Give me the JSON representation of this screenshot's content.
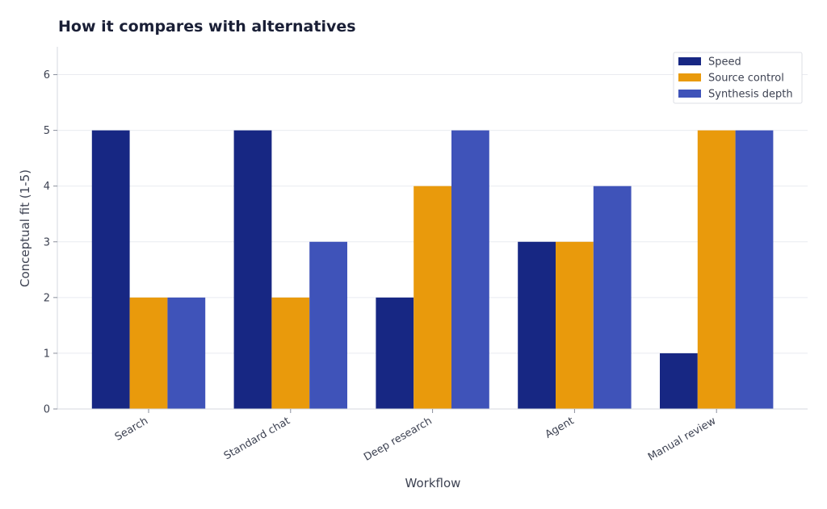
{
  "chart_data": {
    "type": "bar",
    "title": "How it compares with alternatives",
    "xlabel": "Workflow",
    "ylabel": "Conceptual fit (1-5)",
    "categories": [
      "Search",
      "Standard chat",
      "Deep research",
      "Agent",
      "Manual review"
    ],
    "series": [
      {
        "name": "Speed",
        "color": "#172783",
        "values": [
          5,
          5,
          2,
          3,
          1
        ]
      },
      {
        "name": "Source control",
        "color": "#e99a0c",
        "values": [
          2,
          2,
          4,
          3,
          5
        ]
      },
      {
        "name": "Synthesis depth",
        "color": "#3f53b9",
        "values": [
          2,
          3,
          5,
          4,
          5
        ]
      }
    ],
    "ylim": [
      0,
      6.5
    ],
    "yticks": [
      0,
      1,
      2,
      3,
      4,
      5,
      6
    ],
    "grid": true,
    "legend_position": "top-right"
  }
}
